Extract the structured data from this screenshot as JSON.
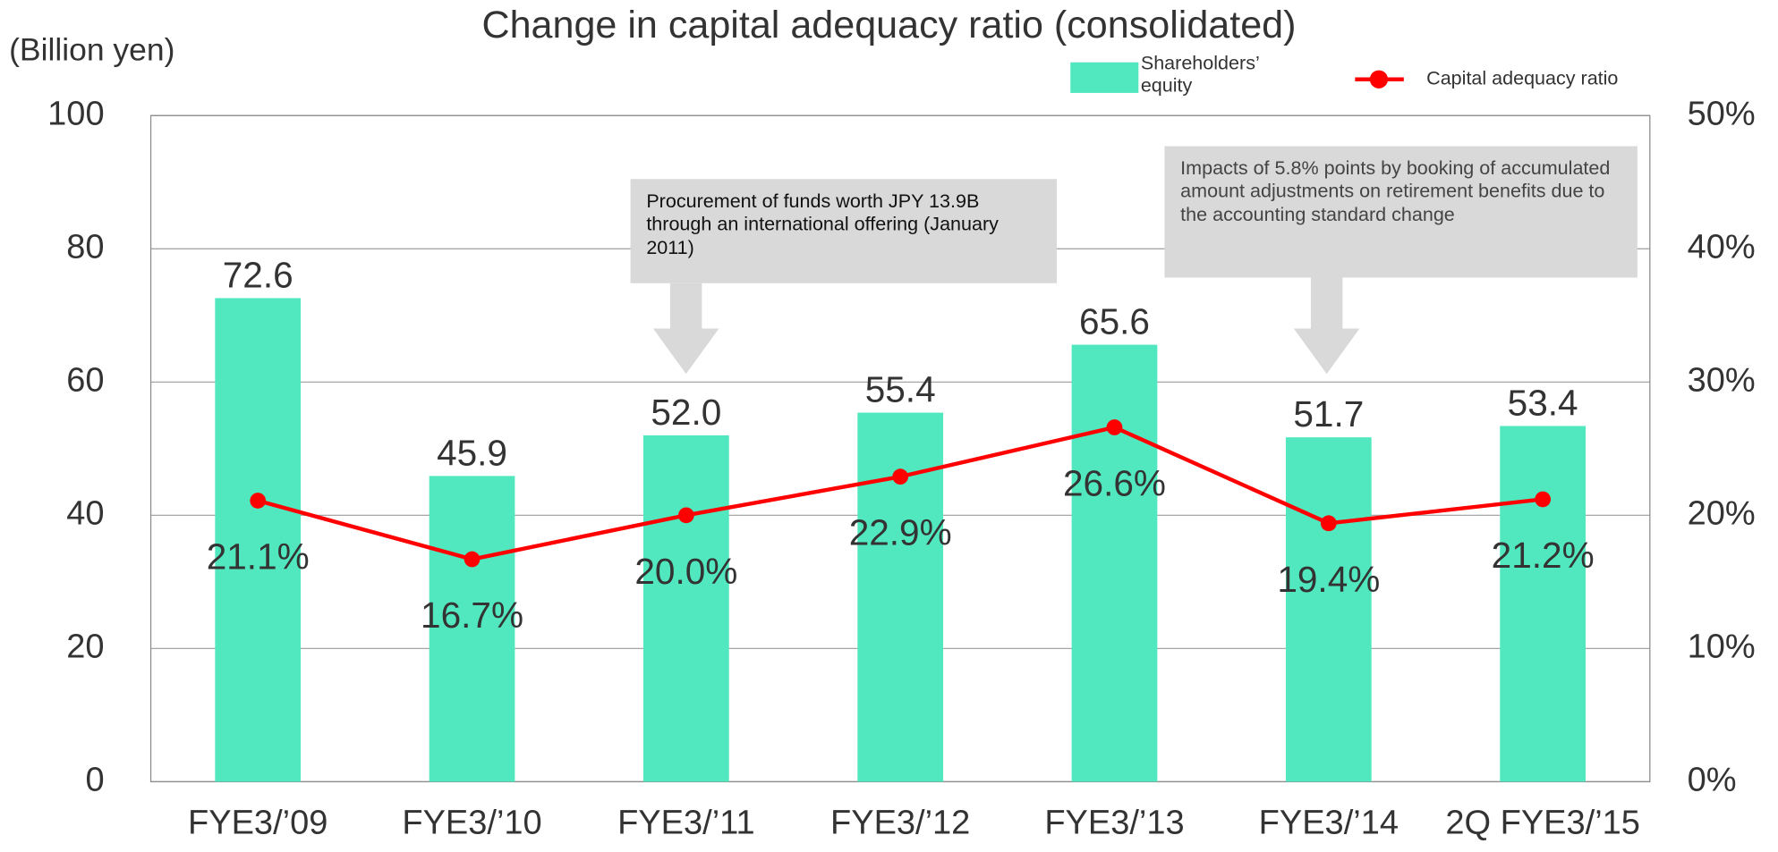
{
  "chart_data": {
    "type": "bar",
    "title": "Change in capital adequacy ratio (consolidated)",
    "y_label": "(Billion yen)",
    "categories": [
      "FYE3/’09",
      "FYE3/’10",
      "FYE3/’11",
      "FYE3/’12",
      "FYE3/’13",
      "FYE3/’14",
      "2Q FYE3/’15"
    ],
    "series": [
      {
        "name": "Shareholders’ equity",
        "type": "bar",
        "color": "#52e8bf",
        "values": [
          72.6,
          45.9,
          52.0,
          55.4,
          65.6,
          51.7,
          53.4
        ],
        "value_labels": [
          "72.6",
          "45.9",
          "52.0",
          "55.4",
          "65.6",
          "51.7",
          "53.4"
        ]
      },
      {
        "name": "Capital adequacy ratio",
        "type": "line",
        "axis": "y2",
        "color": "#ff0000",
        "values": [
          21.1,
          16.7,
          20.0,
          22.9,
          26.6,
          19.4,
          21.2
        ],
        "value_labels": [
          "21.1%",
          "16.7%",
          "20.0%",
          "22.9%",
          "26.6%",
          "19.4%",
          "21.2%"
        ]
      }
    ],
    "ylim": [
      0,
      100
    ],
    "yticks": [
      0,
      20,
      40,
      60,
      80,
      100
    ],
    "y2lim": [
      0,
      50
    ],
    "y2ticks": [
      {
        "value": 0,
        "label": "0%"
      },
      {
        "value": 10,
        "label": "10%"
      },
      {
        "value": 20,
        "label": "20%"
      },
      {
        "value": 30,
        "label": "30%"
      },
      {
        "value": 40,
        "label": "40%"
      },
      {
        "value": 50,
        "label": "50%"
      }
    ],
    "grid": true,
    "legend": "top-right",
    "annotations": [
      "Procurement of funds worth JPY 13.9B through an international offering (January 2011)",
      "Impacts of 5.8% points by booking of accumulated amount adjustments on retirement benefits due to the accounting standard change"
    ]
  }
}
